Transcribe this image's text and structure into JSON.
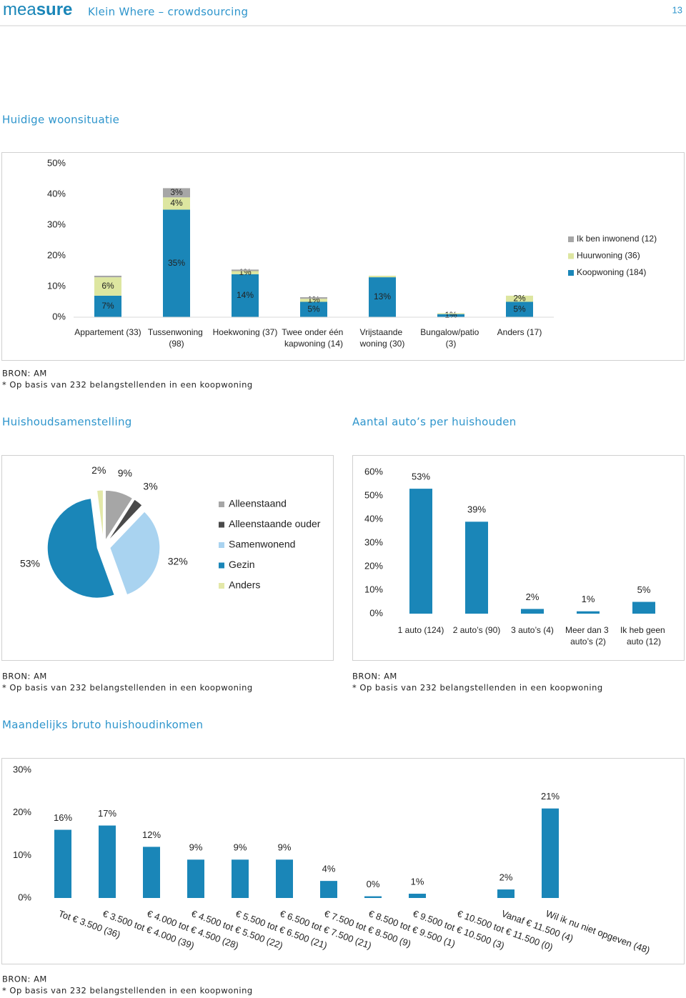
{
  "header": {
    "logo_light": "mea",
    "logo_bold": "sure",
    "title": "Klein Where – crowdsourcing",
    "page": "13"
  },
  "chart_data": [
    {
      "type": "stacked_bar",
      "title": "Huidige woonsituatie",
      "categories": [
        "Appartement (33)",
        "Tussenwoning (98)",
        "Hoekwoning (37)",
        "Twee onder één kapwoning (14)",
        "Vrijstaande woning (30)",
        "Bungalow/patio (3)",
        "Anders (17)"
      ],
      "series": [
        {
          "name": "Koopwoning (184)",
          "color": "#1a86b8",
          "values": [
            7,
            35,
            14,
            5,
            13,
            1,
            5
          ],
          "value_labels": [
            "7%",
            "35%",
            "14%",
            "5%",
            "13%",
            "1%",
            "5%"
          ]
        },
        {
          "name": "Huurwoning (36)",
          "color": "#dde6a0",
          "values": [
            6,
            4,
            1,
            1,
            0.5,
            0.3,
            2
          ],
          "value_labels": [
            "6%",
            "4%",
            "1%",
            "1%",
            null,
            null,
            "2%"
          ]
        },
        {
          "name": "Ik ben inwonend (12)",
          "color": "#a6a6a6",
          "values": [
            0.5,
            3,
            0.5,
            0.5,
            0,
            0,
            0
          ],
          "value_labels": [
            null,
            "3%",
            null,
            null,
            null,
            null,
            null
          ]
        }
      ],
      "ylim": [
        0,
        50
      ],
      "yticks": [
        {
          "value": 0,
          "label": "0%"
        },
        {
          "value": 10,
          "label": "10%"
        },
        {
          "value": 20,
          "label": "20%"
        },
        {
          "value": 30,
          "label": "30%"
        },
        {
          "value": 40,
          "label": "40%"
        },
        {
          "value": 50,
          "label": "50%"
        }
      ],
      "grid": false,
      "legend": "right",
      "source": "BRON: AM",
      "note": "* Op basis van 232 belangstellenden in een koopwoning"
    },
    {
      "type": "pie",
      "title": "Huishoudsamenstelling",
      "categories": [
        "Alleenstaand",
        "Alleenstaande ouder",
        "Samenwonend",
        "Gezin",
        "Anders"
      ],
      "values": [
        9,
        3,
        32,
        53,
        2
      ],
      "value_labels": [
        "9%",
        "3%",
        "32%",
        "53%",
        "2%"
      ],
      "colors": [
        "#a6a6a6",
        "#4a4a4a",
        "#a9d3f0",
        "#1a86b8",
        "#e3e8a8"
      ],
      "legend": "right",
      "source": "BRON: AM",
      "note": "* Op basis van 232 belangstellenden in een koopwoning"
    },
    {
      "type": "bar",
      "title": "Aantal auto’s per huishouden",
      "categories": [
        "1 auto (124)",
        "2 auto’s (90)",
        "3 auto’s (4)",
        "Meer dan 3 auto’s (2)",
        "Ik heb geen auto (12)"
      ],
      "values": [
        53,
        39,
        2,
        1,
        5
      ],
      "value_labels": [
        "53%",
        "39%",
        "2%",
        "1%",
        "5%"
      ],
      "color": "#1a86b8",
      "ylim": [
        0,
        60
      ],
      "yticks": [
        {
          "value": 0,
          "label": "0%"
        },
        {
          "value": 10,
          "label": "10%"
        },
        {
          "value": 20,
          "label": "20%"
        },
        {
          "value": 30,
          "label": "30%"
        },
        {
          "value": 40,
          "label": "40%"
        },
        {
          "value": 50,
          "label": "50%"
        },
        {
          "value": 60,
          "label": "60%"
        }
      ],
      "grid": false,
      "source": "BRON: AM",
      "note": "* Op basis van 232 belangstellenden in een koopwoning"
    },
    {
      "type": "bar",
      "title": "Maandelijks bruto huishoudinkomen",
      "categories": [
        "Tot € 3.500 (36)",
        "€ 3.500 tot € 4.000 (39)",
        "€ 4.000 tot € 4.500 (28)",
        "€ 4.500 tot € 5.500 (22)",
        "€ 5.500 tot € 6.500 (21)",
        "€ 6.500 tot € 7.500 (21)",
        "€ 7.500 tot € 8.500 (9)",
        "€ 8.500 tot € 9.500 (1)",
        "€ 9.500 tot € 10.500 (3)",
        "€ 10.500 tot € 11.500 (0)",
        "Vanaf € 11.500 (4)",
        "Wil ik nu niet opgeven (48)"
      ],
      "values": [
        16,
        17,
        12,
        9,
        9,
        9,
        4,
        0.4,
        1,
        0,
        2,
        21
      ],
      "value_labels": [
        "16%",
        "17%",
        "12%",
        "9%",
        "9%",
        "9%",
        "4%",
        "0%",
        "1%",
        null,
        "2%",
        "21%"
      ],
      "color": "#1a86b8",
      "ylim": [
        0,
        30
      ],
      "yticks": [
        {
          "value": 0,
          "label": "0%"
        },
        {
          "value": 10,
          "label": "10%"
        },
        {
          "value": 20,
          "label": "20%"
        },
        {
          "value": 30,
          "label": "30%"
        }
      ],
      "grid": false,
      "source": "BRON: AM",
      "note": "* Op basis van 232 belangstellenden in een koopwoning"
    }
  ]
}
